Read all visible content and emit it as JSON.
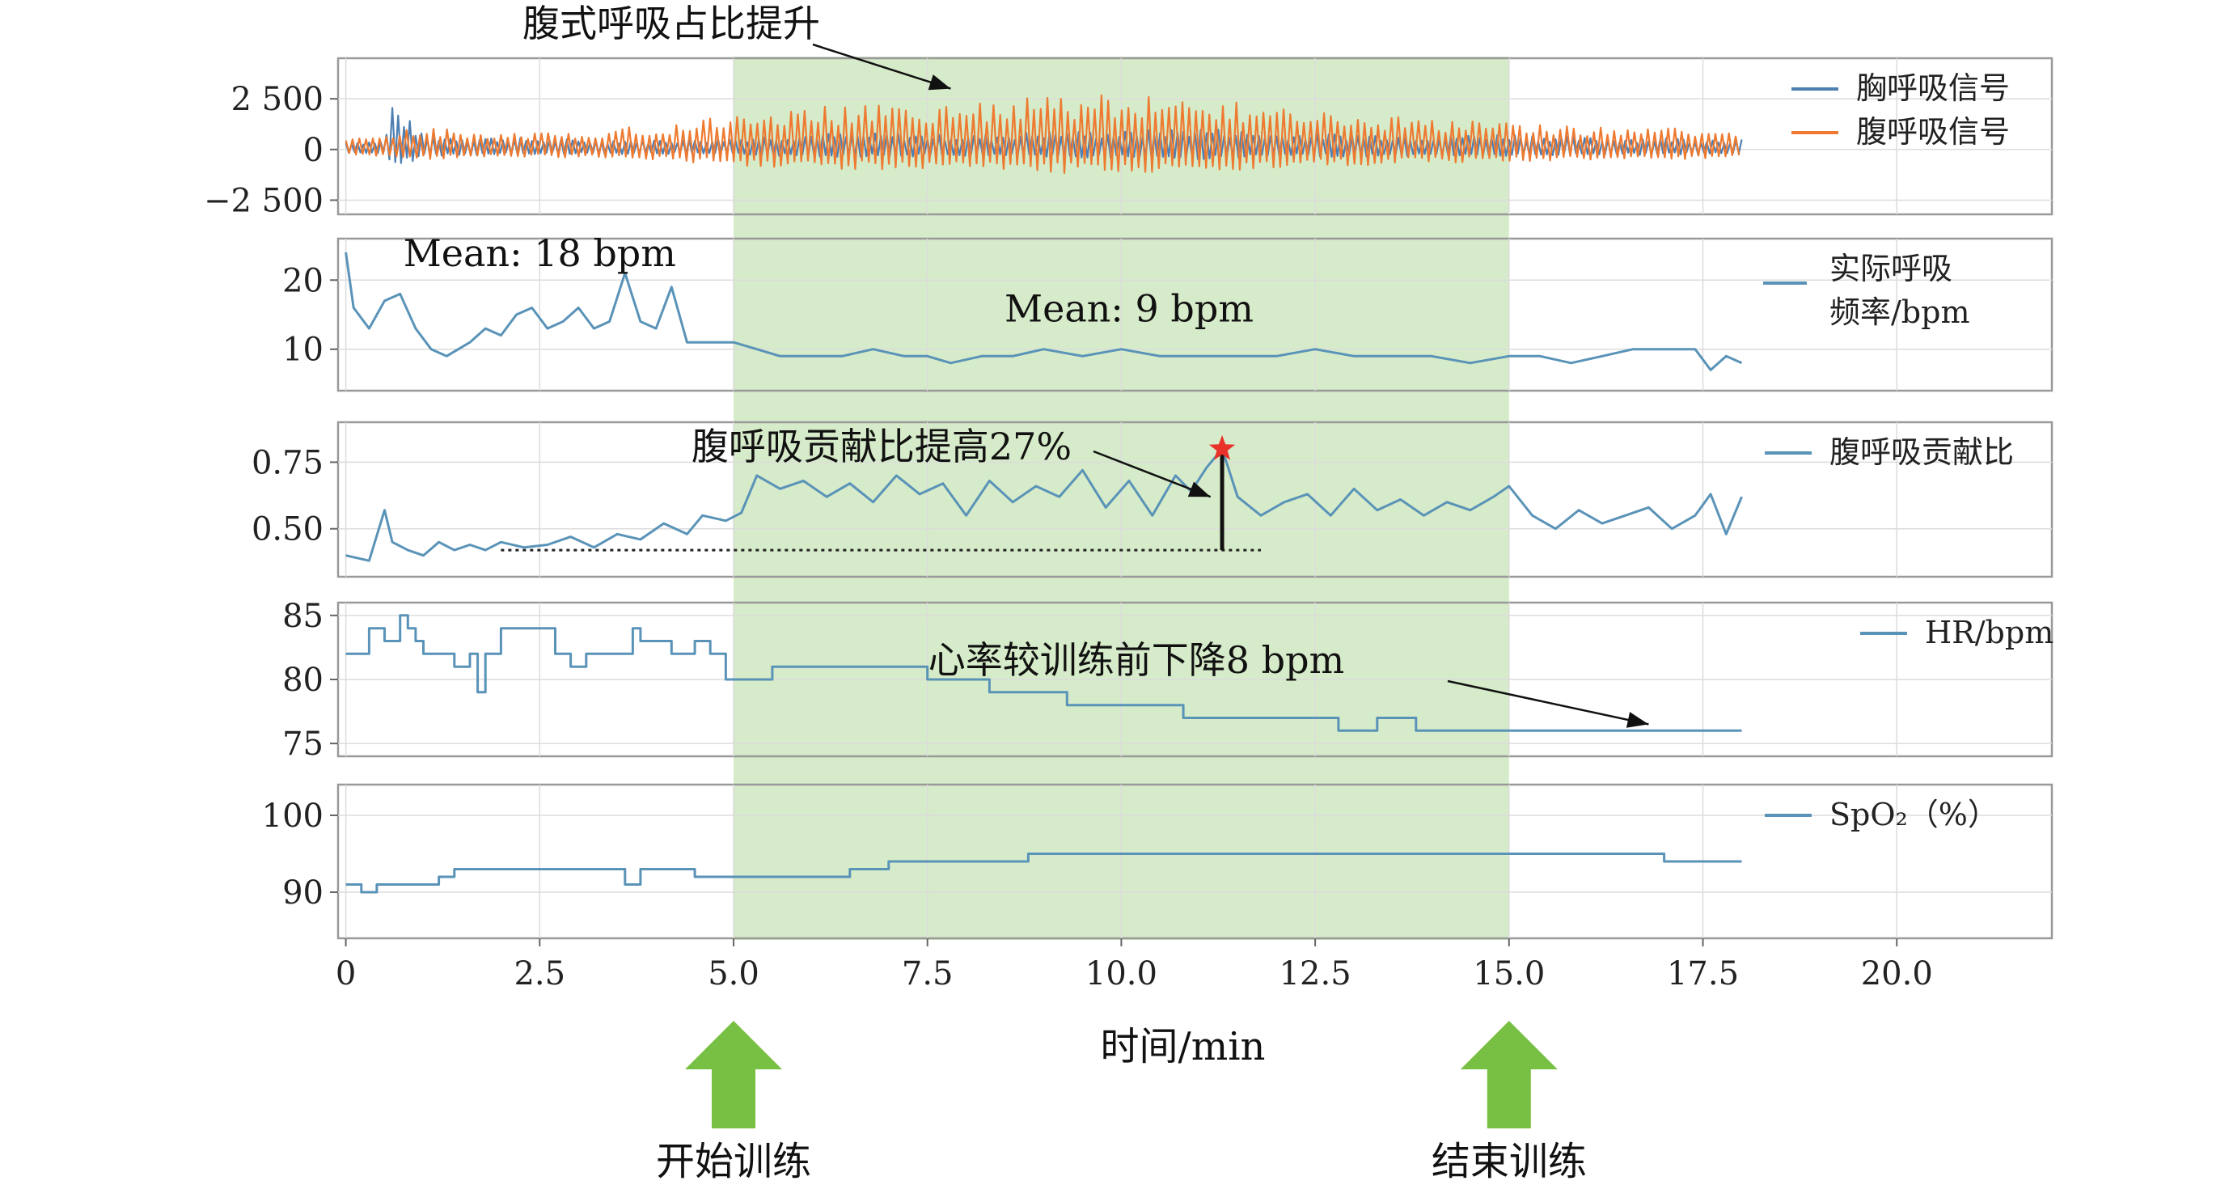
{
  "chart_data": {
    "type": "line",
    "xlabel": "时间/min",
    "x_ticks": [
      "0",
      "2.5",
      "5.0",
      "7.5",
      "10.0",
      "12.5",
      "15.0",
      "17.5",
      "20.0"
    ],
    "x_tick_values": [
      0,
      2.5,
      5,
      7.5,
      10,
      12.5,
      15,
      17.5,
      20
    ],
    "xlim": [
      -0.1,
      22
    ],
    "grid": true,
    "training_region": [
      5.0,
      15.0
    ],
    "training_region_color": "#cfe8bf",
    "markers": [
      {
        "x": 5.0,
        "label": "开始训练",
        "color": "#77c043"
      },
      {
        "x": 15.0,
        "label": "结束训练",
        "color": "#77c043"
      }
    ],
    "panels": [
      {
        "id": "breath-signals",
        "ylim": [
          -3200,
          4500
        ],
        "y_ticks": [
          "2 500",
          "0",
          "−2 500"
        ],
        "y_tick_values": [
          2500,
          0,
          -2500
        ],
        "legend_position": "right",
        "series": [
          {
            "name": "胸呼吸信号",
            "color": "#4d7fb3",
            "kind": "oscillation",
            "x": [
              0,
              0.5,
              0.6,
              1,
              2,
              3,
              4,
              5,
              6,
              7,
              8,
              9,
              10,
              11,
              12,
              13,
              14,
              15,
              16,
              17,
              18
            ],
            "amplitude": [
              400,
              450,
              2400,
              700,
              600,
              500,
              500,
              600,
              800,
              800,
              700,
              900,
              900,
              1100,
              800,
              800,
              700,
              800,
              600,
              600,
              500
            ]
          },
          {
            "name": "腹呼吸信号",
            "color": "#ee7a31",
            "kind": "oscillation",
            "x": [
              0,
              1,
              2,
              3,
              4,
              5,
              6,
              7,
              8,
              9,
              10,
              11,
              12,
              13,
              14,
              15,
              16,
              17,
              18
            ],
            "amplitude": [
              500,
              1100,
              800,
              900,
              1200,
              1800,
              2100,
              2200,
              2300,
              2600,
              2700,
              2600,
              2000,
              1800,
              1500,
              1300,
              1200,
              1100,
              1000
            ]
          }
        ],
        "annotations": [
          {
            "text": "腹式呼吸占比提升",
            "arrow_to": [
              7.8,
              3000
            ]
          }
        ]
      },
      {
        "id": "resp-rate",
        "ylim": [
          4,
          26
        ],
        "y_ticks": [
          "20",
          "10"
        ],
        "y_tick_values": [
          20,
          10
        ],
        "legend_position": "right",
        "series": [
          {
            "name": "实际呼吸频率/bpm",
            "color": "#5a93b8",
            "kind": "line",
            "x": [
              0,
              0.1,
              0.3,
              0.5,
              0.7,
              0.9,
              1.1,
              1.3,
              1.6,
              1.8,
              2.0,
              2.2,
              2.4,
              2.6,
              2.8,
              3.0,
              3.2,
              3.4,
              3.6,
              3.8,
              4.0,
              4.2,
              4.4,
              4.6,
              4.8,
              5.0,
              5.3,
              5.6,
              6.0,
              6.4,
              6.8,
              7.2,
              7.5,
              7.8,
              8.2,
              8.6,
              9.0,
              9.5,
              10.0,
              10.5,
              11.0,
              11.5,
              12.0,
              12.5,
              13.0,
              13.5,
              14.0,
              14.5,
              15.0,
              15.4,
              15.8,
              16.2,
              16.6,
              17.0,
              17.4,
              17.6,
              17.8,
              18.0
            ],
            "y": [
              24,
              16,
              13,
              17,
              18,
              13,
              10,
              9,
              11,
              13,
              12,
              15,
              16,
              13,
              14,
              16,
              13,
              14,
              21,
              14,
              13,
              19,
              11,
              11,
              11,
              11,
              10,
              9,
              9,
              9,
              10,
              9,
              9,
              8,
              9,
              9,
              10,
              9,
              10,
              9,
              9,
              9,
              9,
              10,
              9,
              9,
              9,
              8,
              9,
              9,
              8,
              9,
              10,
              10,
              10,
              7,
              9,
              8
            ]
          }
        ],
        "annotations": [
          {
            "text": "Mean: 18 bpm",
            "at": [
              2.5,
              22
            ]
          },
          {
            "text": "Mean: 9 bpm",
            "at": [
              10.1,
              14
            ]
          }
        ]
      },
      {
        "id": "abd-ratio",
        "ylim": [
          0.32,
          0.9
        ],
        "y_ticks": [
          "0.75",
          "0.50"
        ],
        "y_tick_values": [
          0.75,
          0.5
        ],
        "legend_position": "right",
        "series": [
          {
            "name": "腹呼吸贡献比",
            "color": "#5a93b8",
            "kind": "line",
            "x": [
              0,
              0.3,
              0.5,
              0.6,
              0.8,
              1.0,
              1.2,
              1.4,
              1.6,
              1.8,
              2.0,
              2.3,
              2.6,
              2.9,
              3.2,
              3.5,
              3.8,
              4.1,
              4.4,
              4.6,
              4.9,
              5.1,
              5.3,
              5.6,
              5.9,
              6.2,
              6.5,
              6.8,
              7.1,
              7.4,
              7.7,
              8.0,
              8.3,
              8.6,
              8.9,
              9.2,
              9.5,
              9.8,
              10.1,
              10.4,
              10.7,
              10.9,
              11.1,
              11.3,
              11.5,
              11.8,
              12.1,
              12.4,
              12.7,
              13.0,
              13.3,
              13.6,
              13.9,
              14.2,
              14.5,
              14.8,
              15.0,
              15.3,
              15.6,
              15.9,
              16.2,
              16.5,
              16.8,
              17.1,
              17.4,
              17.6,
              17.8,
              18.0
            ],
            "y": [
              0.4,
              0.38,
              0.57,
              0.45,
              0.42,
              0.4,
              0.45,
              0.42,
              0.44,
              0.42,
              0.45,
              0.43,
              0.44,
              0.47,
              0.43,
              0.48,
              0.46,
              0.52,
              0.48,
              0.55,
              0.53,
              0.56,
              0.7,
              0.65,
              0.68,
              0.62,
              0.67,
              0.6,
              0.7,
              0.63,
              0.67,
              0.55,
              0.68,
              0.6,
              0.66,
              0.62,
              0.72,
              0.58,
              0.68,
              0.55,
              0.7,
              0.64,
              0.73,
              0.8,
              0.62,
              0.55,
              0.6,
              0.63,
              0.55,
              0.65,
              0.57,
              0.61,
              0.55,
              0.6,
              0.57,
              0.62,
              0.66,
              0.55,
              0.5,
              0.57,
              0.52,
              0.55,
              0.58,
              0.5,
              0.55,
              0.63,
              0.48,
              0.62
            ]
          }
        ],
        "peak": {
          "x": 11.3,
          "y": 0.8
        },
        "baseline": {
          "x": [
            2.0,
            11.8
          ],
          "y": 0.42
        },
        "annotations": [
          {
            "text": "腹呼吸贡献比提高27%",
            "arrow_to": [
              11.15,
              0.62
            ]
          }
        ]
      },
      {
        "id": "heart-rate",
        "ylim": [
          74,
          86
        ],
        "y_ticks": [
          "85",
          "80",
          "75"
        ],
        "y_tick_values": [
          85,
          80,
          75
        ],
        "legend_position": "right",
        "series": [
          {
            "name": "HR/bpm",
            "color": "#5a93b8",
            "kind": "step",
            "x": [
              0,
              0.3,
              0.5,
              0.7,
              0.8,
              0.9,
              1.0,
              1.4,
              1.6,
              1.7,
              1.8,
              2.0,
              2.5,
              2.7,
              2.9,
              3.1,
              3.3,
              3.7,
              3.8,
              4.2,
              4.5,
              4.7,
              4.9,
              5.2,
              5.5,
              6.0,
              6.5,
              7.0,
              7.5,
              7.9,
              8.3,
              8.9,
              9.3,
              9.8,
              10.3,
              10.8,
              11.3,
              11.8,
              12.3,
              12.8,
              13.3,
              13.8,
              14.3,
              14.8,
              15.3,
              16.0,
              17.0,
              17.8,
              18.0
            ],
            "y": [
              82,
              84,
              83,
              85,
              84,
              83,
              82,
              81,
              82,
              79,
              82,
              84,
              84,
              82,
              81,
              82,
              82,
              84,
              83,
              82,
              83,
              82,
              80,
              80,
              81,
              81,
              81,
              81,
              80,
              80,
              79,
              79,
              78,
              78,
              78,
              77,
              77,
              77,
              77,
              76,
              77,
              76,
              76,
              76,
              76,
              76,
              76,
              76,
              76
            ]
          }
        ],
        "annotations": [
          {
            "text": "心率较训练前下降8 bpm",
            "arrow_to": [
              16.8,
              76.5
            ]
          }
        ]
      },
      {
        "id": "spo2",
        "ylim": [
          84,
          104
        ],
        "y_ticks": [
          "100",
          "90"
        ],
        "y_tick_values": [
          100,
          90
        ],
        "legend_position": "right",
        "series": [
          {
            "name": "SpO₂（%）",
            "color": "#5a93b8",
            "kind": "step",
            "x": [
              0,
              0.2,
              0.4,
              1.2,
              1.4,
              1.6,
              1.9,
              2.2,
              2.6,
              3.1,
              3.6,
              3.8,
              4.1,
              4.5,
              5.0,
              5.5,
              6.5,
              7.0,
              7.5,
              8.0,
              8.8,
              9.5,
              10.5,
              11.5,
              12.5,
              13.5,
              14.5,
              15.0,
              16.0,
              17.0,
              17.8,
              18.0
            ],
            "y": [
              91,
              90,
              91,
              92,
              93,
              93,
              93,
              93,
              93,
              93,
              91,
              93,
              93,
              92,
              92,
              92,
              93,
              94,
              94,
              94,
              95,
              95,
              95,
              95,
              95,
              95,
              95,
              95,
              95,
              94,
              94,
              94
            ]
          }
        ]
      }
    ]
  }
}
